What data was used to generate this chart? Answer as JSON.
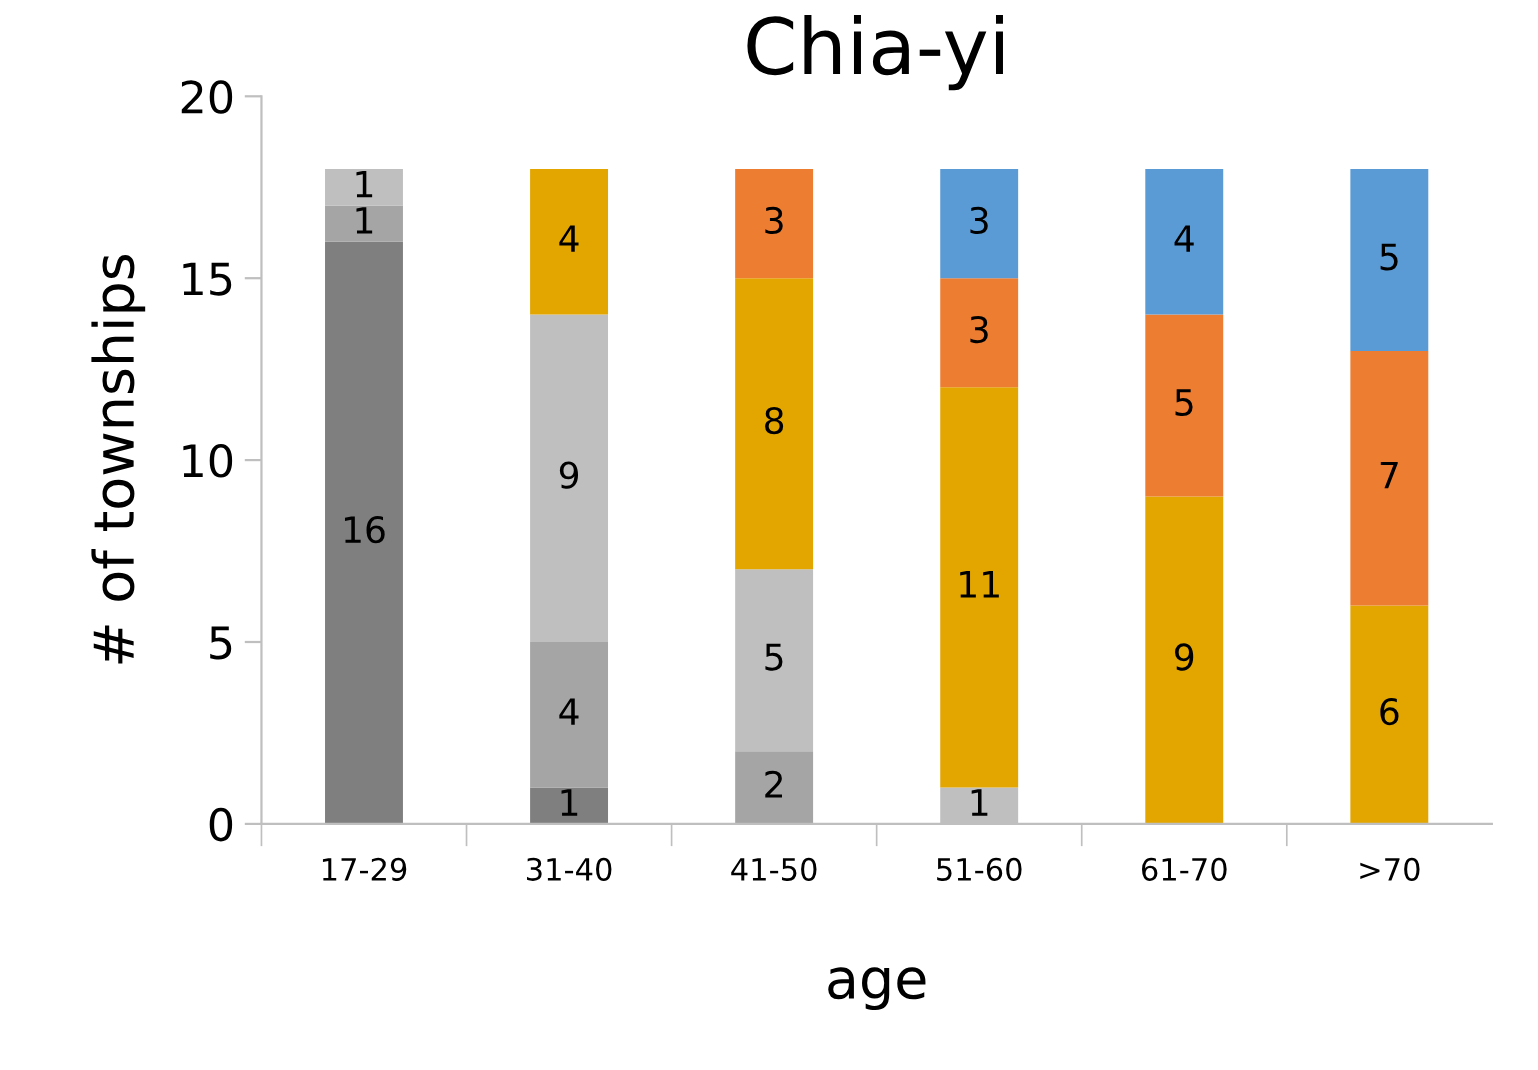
{
  "chart_data": {
    "type": "bar",
    "title": "Chia-yi",
    "xlabel": "age",
    "ylabel": "# of townships",
    "categories": [
      "17-29",
      "31-40",
      "41-50",
      "51-60",
      "61-70",
      ">70"
    ],
    "stacked": true,
    "data_labels": true,
    "grid": false,
    "legend": false,
    "ylim": [
      0,
      20
    ],
    "yticks": [
      0,
      5,
      10,
      15,
      20
    ],
    "series": [
      {
        "color": "#7f7f7f",
        "values": [
          16,
          1,
          null,
          null,
          null,
          null
        ]
      },
      {
        "color": "#a5a5a5",
        "values": [
          1,
          4,
          2,
          null,
          null,
          null
        ]
      },
      {
        "color": "#bfbfbf",
        "values": [
          1,
          9,
          5,
          1,
          null,
          null
        ]
      },
      {
        "color": "#e3a600",
        "values": [
          null,
          4,
          8,
          11,
          9,
          6
        ]
      },
      {
        "color": "#ed7d31",
        "values": [
          null,
          null,
          3,
          3,
          5,
          7
        ]
      },
      {
        "color": "#5b9bd5",
        "values": [
          null,
          null,
          null,
          3,
          4,
          5
        ]
      }
    ]
  }
}
